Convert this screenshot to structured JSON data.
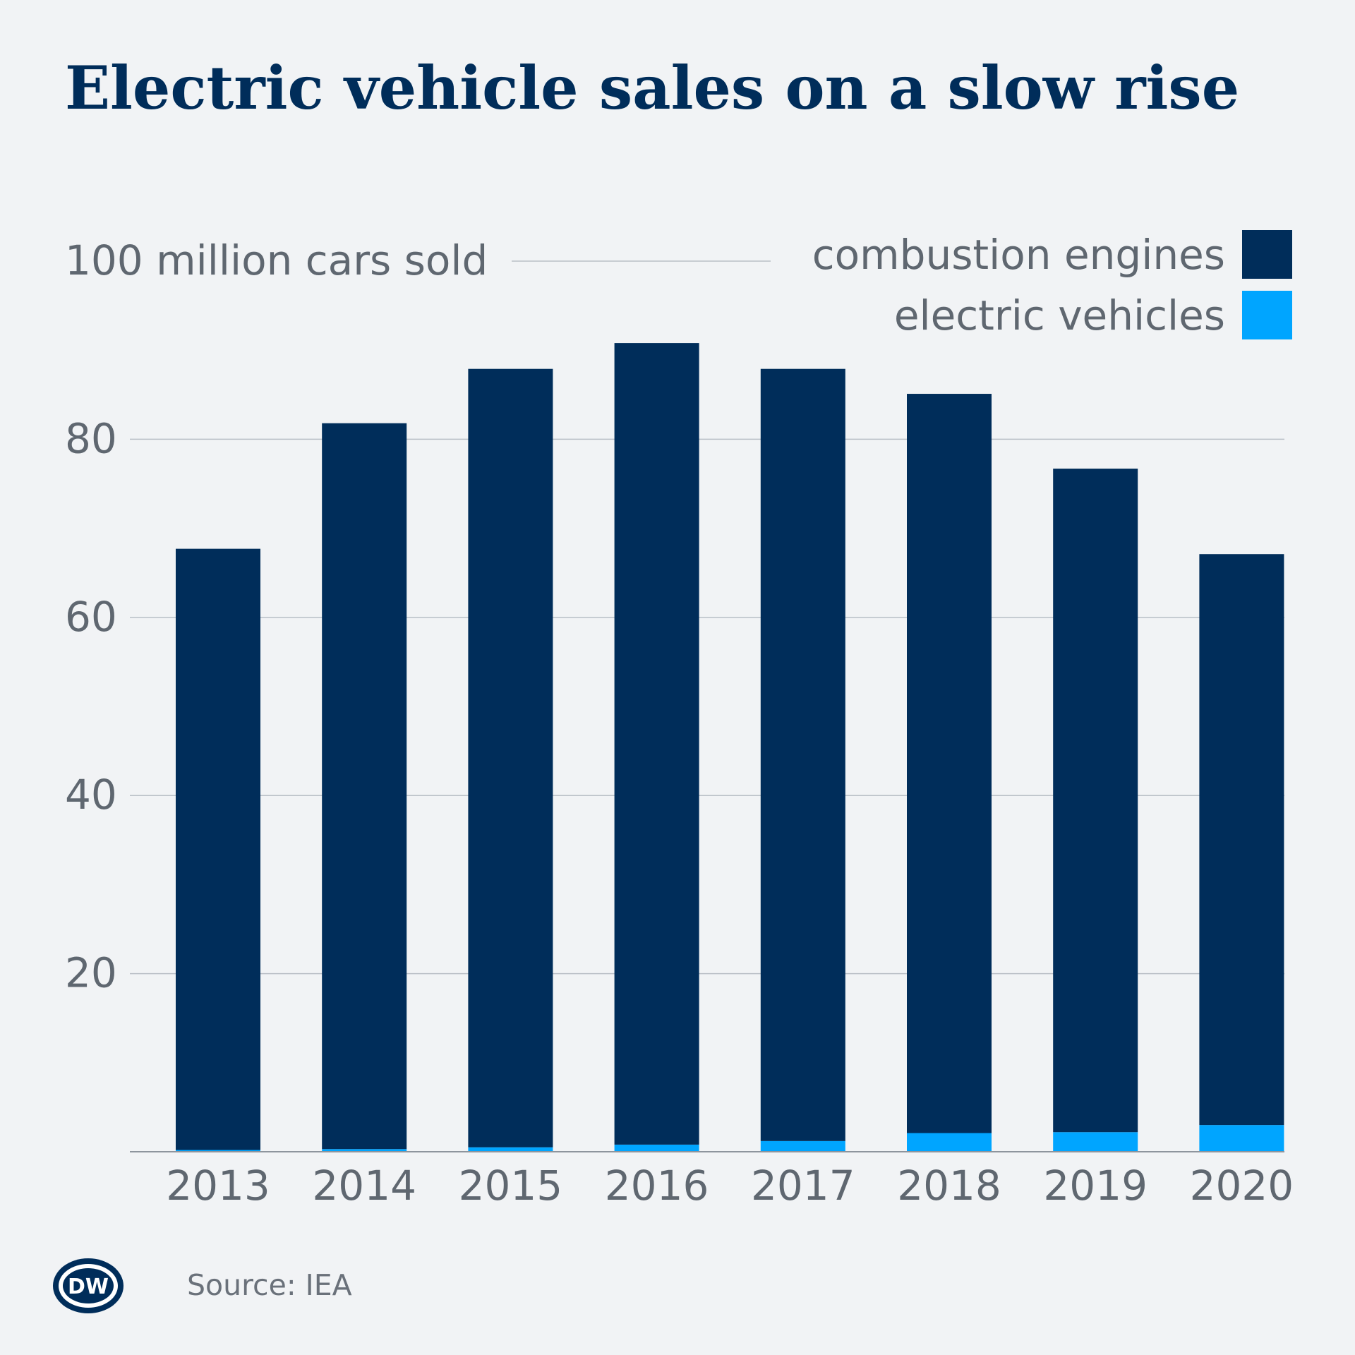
{
  "title": "Electric vehicle sales on a slow rise",
  "source": "Source: IEA",
  "logo_text": "DW",
  "chart_data": {
    "type": "bar",
    "stacked": true,
    "title": "Electric vehicle sales on a slow rise",
    "ylabel": "million cars sold",
    "ylim": [
      0,
      100
    ],
    "yticks": [
      20,
      40,
      60,
      80,
      100
    ],
    "top_tick_unit": "million cars sold",
    "grid": true,
    "legend_position": "top-right",
    "categories": [
      "2013",
      "2014",
      "2015",
      "2016",
      "2017",
      "2018",
      "2019",
      "2020"
    ],
    "series": [
      {
        "name": "electric vehicles",
        "color": "#00a5ff",
        "values": [
          0.2,
          0.3,
          0.5,
          0.8,
          1.2,
          2.1,
          2.2,
          3.0
        ]
      },
      {
        "name": "combustion engines",
        "color": "#002d5a",
        "values": [
          67.5,
          81.5,
          87.4,
          90.0,
          86.7,
          83.0,
          74.5,
          64.1
        ]
      }
    ]
  }
}
